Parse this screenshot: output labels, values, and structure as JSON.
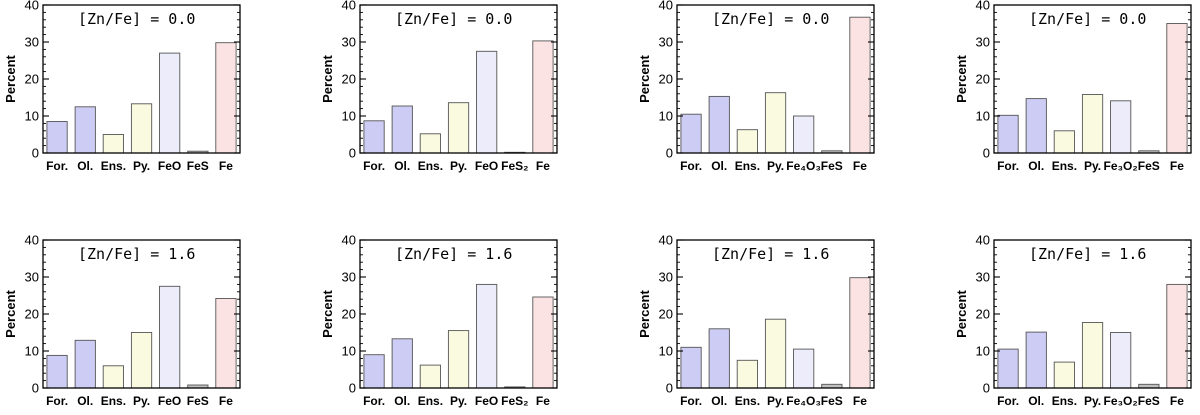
{
  "chart_data": [
    {
      "type": "bar",
      "title": "[Zn/Fe] = 0.0",
      "ylabel": "Percent",
      "ylim": [
        0,
        40
      ],
      "yticks": [
        0,
        10,
        20,
        30,
        40
      ],
      "categories": [
        "For.",
        "Ol.",
        "Ens.",
        "Py.",
        "FeO",
        "FeS",
        "Fe"
      ],
      "values": [
        8.5,
        12.5,
        5.0,
        13.3,
        27.0,
        0.5,
        29.8
      ]
    },
    {
      "type": "bar",
      "title": "[Zn/Fe] = 0.0",
      "ylabel": "Percent",
      "ylim": [
        0,
        40
      ],
      "yticks": [
        0,
        10,
        20,
        30,
        40
      ],
      "categories": [
        "For.",
        "Ol.",
        "Ens.",
        "Py.",
        "FeO",
        "FeS₂",
        "Fe"
      ],
      "values": [
        8.7,
        12.7,
        5.2,
        13.6,
        27.5,
        0.2,
        30.3
      ]
    },
    {
      "type": "bar",
      "title": "[Zn/Fe] = 0.0",
      "ylabel": "Percent",
      "ylim": [
        0,
        40
      ],
      "yticks": [
        0,
        10,
        20,
        30,
        40
      ],
      "categories": [
        "For.",
        "Ol.",
        "Ens.",
        "Py.",
        "Fe₄O₃",
        "FeS",
        "Fe"
      ],
      "values": [
        10.5,
        15.3,
        6.3,
        16.3,
        10.0,
        0.6,
        36.7
      ]
    },
    {
      "type": "bar",
      "title": "[Zn/Fe] = 0.0",
      "ylabel": "Percent",
      "ylim": [
        0,
        40
      ],
      "yticks": [
        0,
        10,
        20,
        30,
        40
      ],
      "categories": [
        "For.",
        "Ol.",
        "Ens.",
        "Py.",
        "Fe₃O₂",
        "FeS",
        "Fe"
      ],
      "values": [
        10.2,
        14.7,
        6.0,
        15.8,
        14.1,
        0.6,
        35.0
      ]
    },
    {
      "type": "bar",
      "title": "[Zn/Fe] = 1.6",
      "ylabel": "Percent",
      "ylim": [
        0,
        40
      ],
      "yticks": [
        0,
        10,
        20,
        30,
        40
      ],
      "categories": [
        "For.",
        "Ol.",
        "Ens.",
        "Py.",
        "FeO",
        "FeS",
        "Fe"
      ],
      "values": [
        8.8,
        12.9,
        6.0,
        15.0,
        27.5,
        0.8,
        24.2
      ]
    },
    {
      "type": "bar",
      "title": "[Zn/Fe] = 1.6",
      "ylabel": "Percent",
      "ylim": [
        0,
        40
      ],
      "yticks": [
        0,
        10,
        20,
        30,
        40
      ],
      "categories": [
        "For.",
        "Ol.",
        "Ens.",
        "Py.",
        "FeO",
        "FeS₂",
        "Fe"
      ],
      "values": [
        9.0,
        13.3,
        6.2,
        15.5,
        28.0,
        0.3,
        24.6
      ]
    },
    {
      "type": "bar",
      "title": "[Zn/Fe] = 1.6",
      "ylabel": "Percent",
      "ylim": [
        0,
        40
      ],
      "yticks": [
        0,
        10,
        20,
        30,
        40
      ],
      "categories": [
        "For.",
        "Ol.",
        "Ens.",
        "Py.",
        "Fe₄O₃",
        "FeS",
        "Fe"
      ],
      "values": [
        11.0,
        16.0,
        7.5,
        18.6,
        10.5,
        1.0,
        29.8
      ]
    },
    {
      "type": "bar",
      "title": "[Zn/Fe] = 1.6",
      "ylabel": "Percent",
      "ylim": [
        0,
        40
      ],
      "yticks": [
        0,
        10,
        20,
        30,
        40
      ],
      "categories": [
        "For.",
        "Ol.",
        "Ens.",
        "Py.",
        "Fe₃O₂",
        "FeS",
        "Fe"
      ],
      "values": [
        10.5,
        15.1,
        7.0,
        17.7,
        15.0,
        1.0,
        28.0
      ]
    }
  ],
  "bar_colors": [
    "#ccccf5",
    "#ccccf5",
    "#fafae0",
    "#fafae0",
    "#ececfb",
    "#c0c0c0",
    "#fce3e3"
  ]
}
